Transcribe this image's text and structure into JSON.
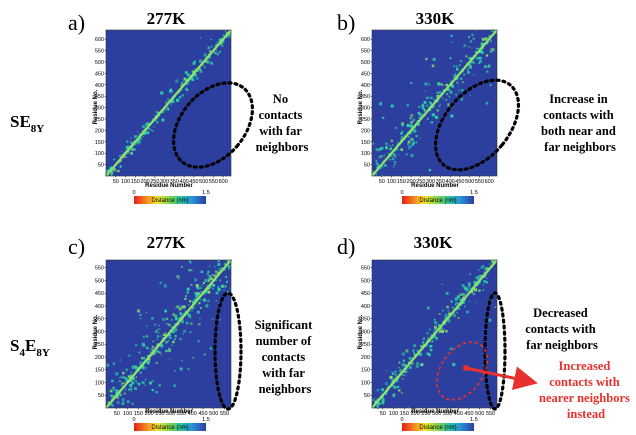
{
  "colors": {
    "background": "#2c3f9f",
    "contact": "#2ad6a8",
    "diagonal": "#8fe36a",
    "annotation_red": "#e8312c",
    "annotation_black": "#000000"
  },
  "row_labels": [
    {
      "main": "SE",
      "sub": "8Y"
    },
    {
      "main": "S",
      "sub1": "4",
      "mid": "E",
      "sub2": "8Y"
    }
  ],
  "chart_data": [
    {
      "type": "heatmap",
      "panel": "a)",
      "title": "277K",
      "xlabel": "Residue Number",
      "ylabel": "Residue No.",
      "x_ticks": [
        "50",
        "100",
        "150",
        "200",
        "250",
        "300",
        "350",
        "400",
        "450",
        "500",
        "550",
        "600"
      ],
      "y_ticks": [
        "50",
        "100",
        "150",
        "200",
        "250",
        "300",
        "350",
        "400",
        "450",
        "500",
        "550",
        "600"
      ],
      "range": [
        0,
        640
      ],
      "colorbar": {
        "min": "0",
        "max": "1.5",
        "label": "Distance (nm)"
      },
      "annotation": [
        "No",
        "contacts",
        "with far",
        "neighbors"
      ]
    },
    {
      "type": "heatmap",
      "panel": "b)",
      "title": "330K",
      "xlabel": "Residue Number",
      "ylabel": "Residue No.",
      "x_ticks": [
        "50",
        "100",
        "150",
        "200",
        "250",
        "300",
        "350",
        "400",
        "450",
        "500",
        "550",
        "600"
      ],
      "y_ticks": [
        "50",
        "100",
        "150",
        "200",
        "250",
        "300",
        "350",
        "400",
        "450",
        "500",
        "550",
        "600"
      ],
      "range": [
        0,
        640
      ],
      "colorbar": {
        "min": "0",
        "max": "1.5",
        "label": "Distance (nm)"
      },
      "annotation": [
        "Increase in",
        "contacts with",
        "both near and",
        "far neighbors"
      ]
    },
    {
      "type": "heatmap",
      "panel": "c)",
      "title": "277K",
      "xlabel": "Residue Number",
      "ylabel": "Residue No.",
      "x_ticks": [
        "50",
        "100",
        "150",
        "200",
        "250",
        "300",
        "350",
        "400",
        "450",
        "500",
        "550"
      ],
      "y_ticks": [
        "50",
        "100",
        "150",
        "200",
        "250",
        "300",
        "350",
        "400",
        "450",
        "500",
        "550"
      ],
      "range": [
        0,
        580
      ],
      "colorbar": {
        "min": "0",
        "max": "1.5",
        "label": "Distance (nm)"
      },
      "annotation": [
        "Significant",
        "number of",
        "contacts",
        "with far",
        "neighbors"
      ]
    },
    {
      "type": "heatmap",
      "panel": "d)",
      "title": "330K",
      "xlabel": "Residue Number",
      "ylabel": "Residue No.",
      "x_ticks": [
        "50",
        "100",
        "150",
        "200",
        "250",
        "300",
        "350",
        "400",
        "450",
        "500",
        "550"
      ],
      "y_ticks": [
        "50",
        "100",
        "150",
        "200",
        "250",
        "300",
        "350",
        "400",
        "450",
        "500",
        "550"
      ],
      "range": [
        0,
        580
      ],
      "colorbar": {
        "min": "0",
        "max": "1.5",
        "label": "Distance (nm)"
      },
      "annotation": [
        "Decreased",
        "contacts with",
        "far neighbors"
      ],
      "red_annotation": [
        "Increased",
        "contacts with",
        "nearer neighbors",
        "instead"
      ]
    }
  ]
}
